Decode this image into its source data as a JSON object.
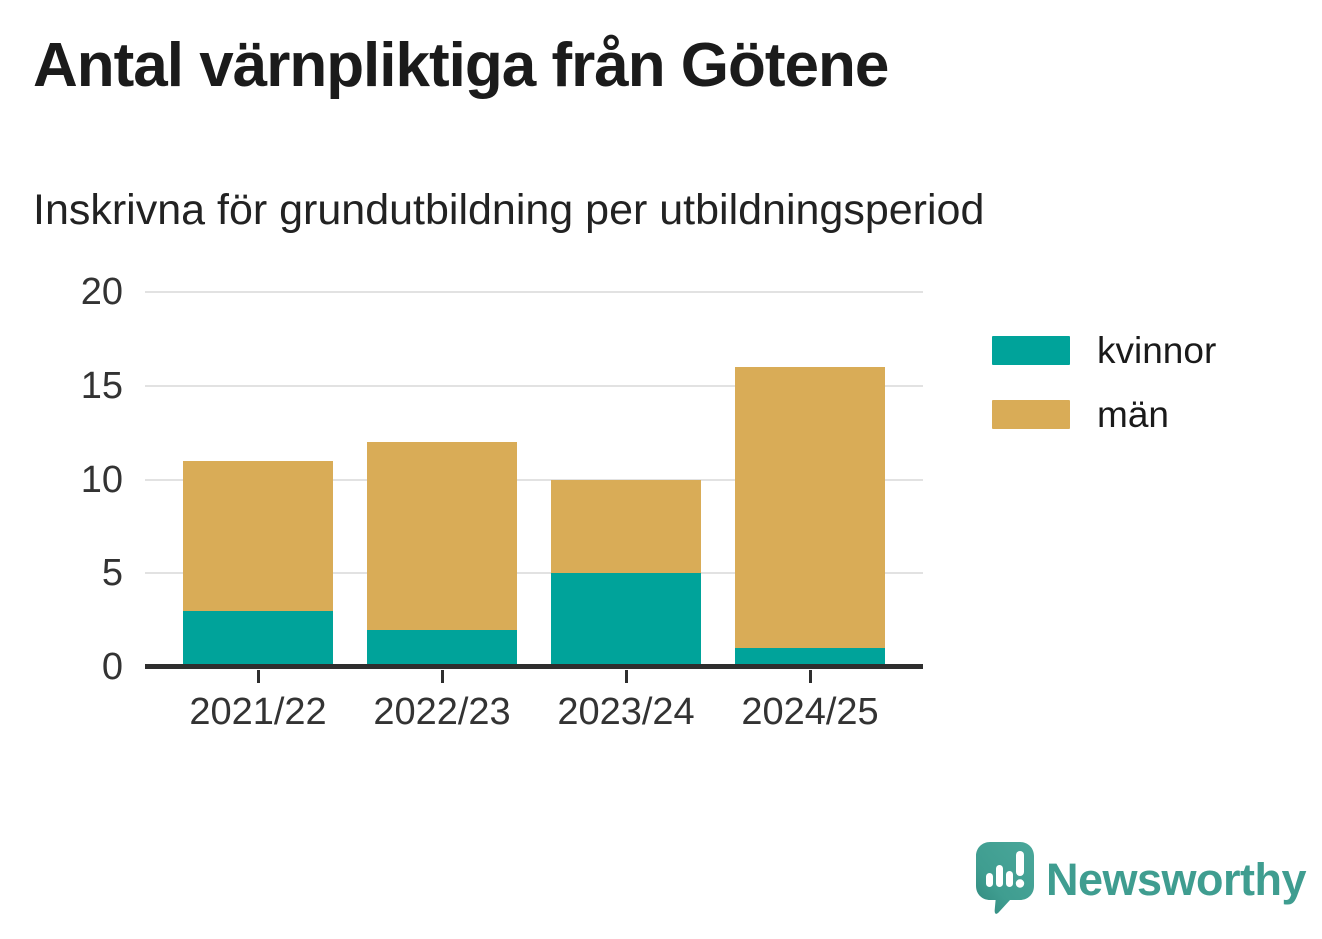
{
  "chart_data": {
    "type": "bar",
    "stacked": true,
    "title": "Antal värnpliktiga från Götene",
    "subtitle": "Inskrivna för grundutbildning per utbildningsperiod",
    "categories": [
      "2021/22",
      "2022/23",
      "2023/24",
      "2024/25"
    ],
    "series": [
      {
        "name": "kvinnor",
        "color": "#00A39A",
        "values": [
          3,
          2,
          5,
          1
        ]
      },
      {
        "name": "män",
        "color": "#D9AC57",
        "values": [
          8,
          10,
          5,
          15
        ]
      }
    ],
    "totals": [
      11,
      12,
      10,
      16
    ],
    "xlabel": "",
    "ylabel": "",
    "ylim": [
      0,
      20
    ],
    "yticks": [
      0,
      5,
      10,
      15,
      20
    ],
    "grid": "horizontal",
    "legend_position": "right"
  },
  "colors": {
    "axis": "#2E2E2E",
    "gridline": "#E2E2E2",
    "tick_text": "#333333",
    "title_text": "#1B1B1B",
    "background": "#FFFFFF"
  },
  "branding": {
    "name": "Newsworthy",
    "color": "#3F9D90"
  }
}
